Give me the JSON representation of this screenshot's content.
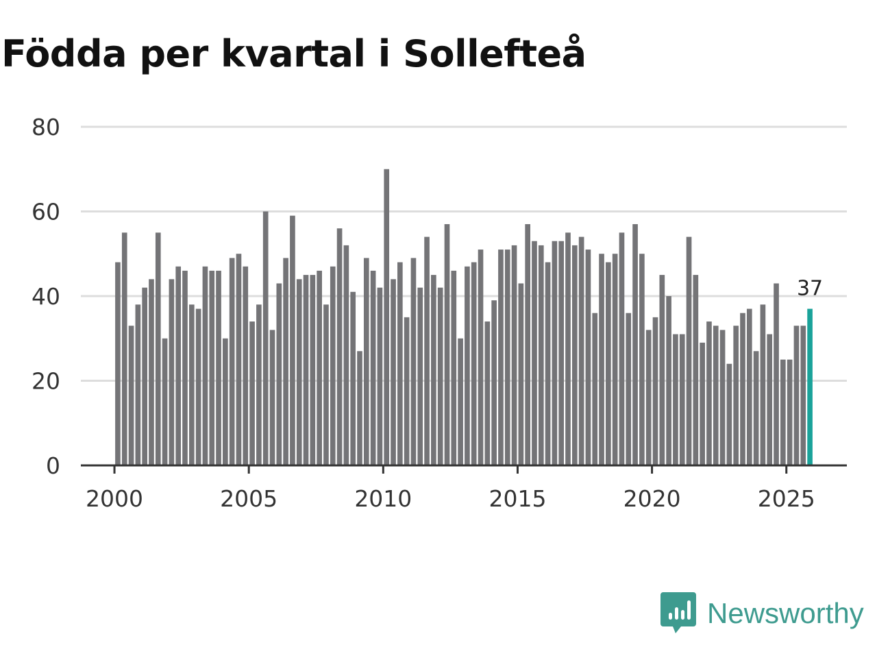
{
  "chart_data": {
    "type": "bar",
    "title": "Födda per kvartal i Sollefteå",
    "xlabel": "",
    "ylabel": "",
    "ylim": [
      0,
      80
    ],
    "yticks": [
      0,
      20,
      40,
      60,
      80
    ],
    "xticks": [
      2000,
      2005,
      2010,
      2015,
      2020,
      2025
    ],
    "xlim": [
      1998.75,
      2027.25
    ],
    "grid": true,
    "start": 2000,
    "categories": [
      "2000 Q1",
      "2000 Q2",
      "2000 Q3",
      "2000 Q4",
      "2001 Q1",
      "2001 Q2",
      "2001 Q3",
      "2001 Q4",
      "2002 Q1",
      "2002 Q2",
      "2002 Q3",
      "2002 Q4",
      "2003 Q1",
      "2003 Q2",
      "2003 Q3",
      "2003 Q4",
      "2004 Q1",
      "2004 Q2",
      "2004 Q3",
      "2004 Q4",
      "2005 Q1",
      "2005 Q2",
      "2005 Q3",
      "2005 Q4",
      "2006 Q1",
      "2006 Q2",
      "2006 Q3",
      "2006 Q4",
      "2007 Q1",
      "2007 Q2",
      "2007 Q3",
      "2007 Q4",
      "2008 Q1",
      "2008 Q2",
      "2008 Q3",
      "2008 Q4",
      "2009 Q1",
      "2009 Q2",
      "2009 Q3",
      "2009 Q4",
      "2010 Q1",
      "2010 Q2",
      "2010 Q3",
      "2010 Q4",
      "2011 Q1",
      "2011 Q2",
      "2011 Q3",
      "2011 Q4",
      "2012 Q1",
      "2012 Q2",
      "2012 Q3",
      "2012 Q4",
      "2013 Q1",
      "2013 Q2",
      "2013 Q3",
      "2013 Q4",
      "2014 Q1",
      "2014 Q2",
      "2014 Q3",
      "2014 Q4",
      "2015 Q1",
      "2015 Q2",
      "2015 Q3",
      "2015 Q4",
      "2016 Q1",
      "2016 Q2",
      "2016 Q3",
      "2016 Q4",
      "2017 Q1",
      "2017 Q2",
      "2017 Q3",
      "2017 Q4",
      "2018 Q1",
      "2018 Q2",
      "2018 Q3",
      "2018 Q4",
      "2019 Q1",
      "2019 Q2",
      "2019 Q3",
      "2019 Q4",
      "2020 Q1",
      "2020 Q2",
      "2020 Q3",
      "2020 Q4",
      "2021 Q1",
      "2021 Q2",
      "2021 Q3",
      "2021 Q4",
      "2022 Q1",
      "2022 Q2",
      "2022 Q3",
      "2022 Q4",
      "2023 Q1",
      "2023 Q2",
      "2023 Q3",
      "2023 Q4",
      "2024 Q1",
      "2024 Q2",
      "2024 Q3",
      "2024 Q4",
      "2025 Q1",
      "2025 Q2",
      "2025 Q3",
      "2025 Q4"
    ],
    "values": [
      48,
      55,
      33,
      38,
      42,
      44,
      55,
      30,
      44,
      47,
      46,
      38,
      37,
      47,
      46,
      46,
      30,
      49,
      50,
      47,
      34,
      38,
      60,
      32,
      43,
      49,
      59,
      44,
      45,
      45,
      46,
      38,
      47,
      56,
      52,
      41,
      27,
      49,
      46,
      42,
      70,
      44,
      48,
      35,
      49,
      42,
      54,
      45,
      42,
      57,
      46,
      30,
      47,
      48,
      51,
      34,
      39,
      51,
      51,
      52,
      43,
      57,
      53,
      52,
      48,
      53,
      53,
      55,
      52,
      54,
      51,
      36,
      50,
      48,
      50,
      55,
      36,
      57,
      50,
      32,
      35,
      45,
      40,
      31,
      31,
      54,
      45,
      29,
      34,
      33,
      32,
      24,
      33,
      36,
      37,
      27,
      38,
      31,
      43,
      25,
      25,
      33,
      33,
      37
    ],
    "highlight_label": "37"
  },
  "colors": {
    "bar": "#747477",
    "highlight": "#1aa39a",
    "grid": "#dddddd",
    "axis": "#333333",
    "brand": "#3e9b8f"
  },
  "brand": {
    "name": "Newsworthy",
    "icon": "newsworthy-logo-icon"
  }
}
